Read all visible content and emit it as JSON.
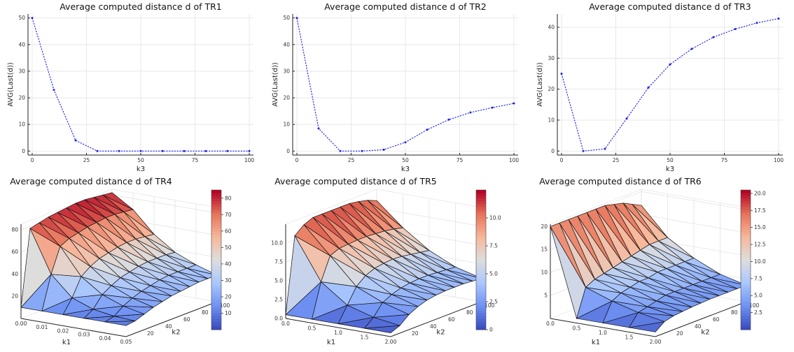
{
  "colors": {
    "series": "#1f1fe6",
    "grid": "#e3e3e3",
    "colormap": [
      "#3b4cc0",
      "#6f92f3",
      "#aac7fd",
      "#dddddd",
      "#f7b89c",
      "#e7745b",
      "#b40426"
    ]
  },
  "chart_data": [
    {
      "type": "line",
      "title": "Average computed distance d of TR1",
      "xlabel": "k3",
      "ylabel": "AVG(Last(d))",
      "xlim": [
        0,
        100
      ],
      "ylim": [
        0,
        50
      ],
      "xticks": [
        "0",
        "25",
        "50",
        "75",
        "100"
      ],
      "yticks": [
        "0",
        "10",
        "20",
        "30",
        "40",
        "50"
      ],
      "grid": true,
      "x": [
        0,
        10,
        20,
        30,
        40,
        50,
        60,
        70,
        80,
        90,
        100
      ],
      "y": [
        50,
        23,
        4,
        0,
        0,
        0,
        0,
        0,
        0,
        0,
        0
      ]
    },
    {
      "type": "line",
      "title": "Average computed distance d of TR2",
      "xlabel": "k3",
      "ylabel": "AVG(Last(d))",
      "xlim": [
        0,
        100
      ],
      "ylim": [
        0,
        50
      ],
      "xticks": [
        "0",
        "25",
        "50",
        "75",
        "100"
      ],
      "yticks": [
        "0",
        "10",
        "20",
        "30",
        "40",
        "50"
      ],
      "grid": true,
      "x": [
        0,
        10,
        20,
        30,
        40,
        50,
        60,
        70,
        80,
        90,
        100
      ],
      "y": [
        50,
        8.5,
        0,
        0,
        0.5,
        3.3,
        8,
        11.8,
        14.5,
        16.3,
        17.9
      ]
    },
    {
      "type": "line",
      "title": "Average computed distance d of TR3",
      "xlabel": "k3",
      "ylabel": "AVG(Last(d))",
      "xlim": [
        0,
        100
      ],
      "ylim": [
        0,
        43
      ],
      "xticks": [
        "0",
        "25",
        "50",
        "75",
        "100"
      ],
      "yticks": [
        "0",
        "10",
        "20",
        "30",
        "40"
      ],
      "grid": true,
      "x": [
        0,
        10,
        20,
        30,
        40,
        50,
        60,
        70,
        80,
        90,
        100
      ],
      "y": [
        25,
        0,
        0.7,
        10.5,
        20.5,
        28,
        33,
        36.8,
        39.4,
        41.4,
        42.8
      ]
    },
    {
      "type": "surface",
      "title": "Average computed distance d of TR4",
      "xlabel": "k1",
      "ylabel": "k2",
      "xticks": [
        "0.00",
        "0.01",
        "0.02",
        "0.03",
        "0.04",
        "0.05"
      ],
      "yticks": [
        "20",
        "40",
        "60",
        "80",
        "100"
      ],
      "zticks": [
        "20",
        "40",
        "60",
        "80"
      ],
      "colorbar_ticks": [
        "10",
        "20",
        "30",
        "40",
        "50",
        "60",
        "70",
        "80"
      ],
      "zlim": [
        0,
        85
      ],
      "k1_values": [
        0,
        0.01,
        0.02,
        0.03,
        0.04,
        0.05
      ],
      "k2_values": [
        0,
        10,
        20,
        30,
        40,
        50,
        60,
        70,
        80,
        90,
        100
      ],
      "z": [
        [
          10,
          78,
          80,
          82,
          83,
          84,
          85,
          85,
          84,
          83,
          82
        ],
        [
          10,
          40,
          62,
          66,
          68,
          70,
          71,
          72,
          72,
          71,
          70
        ],
        [
          10,
          22,
          38,
          44,
          48,
          50,
          52,
          53,
          53,
          52,
          51
        ],
        [
          10,
          15,
          25,
          30,
          34,
          36,
          38,
          39,
          39,
          39,
          38
        ],
        [
          10,
          12,
          18,
          22,
          25,
          27,
          29,
          30,
          30,
          30,
          30
        ],
        [
          10,
          11,
          14,
          17,
          19,
          21,
          22,
          23,
          24,
          24,
          24
        ]
      ]
    },
    {
      "type": "surface",
      "title": "Average computed distance d of TR5",
      "xlabel": "k1",
      "ylabel": "k2",
      "xticks": [
        "0.0",
        "0.5",
        "1.0",
        "1.5",
        "2.00"
      ],
      "yticks": [
        "20",
        "40",
        "60",
        "80",
        "100"
      ],
      "zticks": [
        "0.0",
        "2.5",
        "5.0",
        "7.5",
        "10.0"
      ],
      "colorbar_ticks": [
        "0",
        "2.5",
        "5.0",
        "7.5",
        "10.0"
      ],
      "zlim": [
        0,
        12.5
      ],
      "k1_values": [
        0,
        0.5,
        1.0,
        1.5,
        2.0
      ],
      "k2_values": [
        0,
        10,
        20,
        30,
        40,
        50,
        60,
        70,
        80,
        90,
        100
      ],
      "z": [
        [
          0.5,
          10.5,
          11.5,
          12,
          12,
          12,
          12,
          12,
          11.8,
          11.5,
          11
        ],
        [
          0.5,
          5,
          8,
          8.5,
          8.6,
          8.7,
          8.7,
          8.6,
          8.5,
          8.3,
          8
        ],
        [
          0.5,
          2.5,
          4.5,
          5.5,
          6,
          6.2,
          6.3,
          6.2,
          6,
          5.8,
          5.6
        ],
        [
          0.5,
          1.5,
          3,
          3.6,
          4,
          4.2,
          4.3,
          4.3,
          4.2,
          4.1,
          4
        ],
        [
          0.5,
          1,
          2,
          2.6,
          3,
          3.2,
          3.3,
          3.3,
          3.3,
          3.2,
          3.1
        ]
      ]
    },
    {
      "type": "surface",
      "title": "Average computed distance d of TR6",
      "xlabel": "k1",
      "ylabel": "k2",
      "xticks": [
        "0.0",
        "0.5",
        "1.0",
        "1.5",
        "2.00"
      ],
      "yticks": [
        "20",
        "40",
        "60",
        "80",
        "100"
      ],
      "zticks": [
        "5",
        "10",
        "15",
        "20"
      ],
      "colorbar_ticks": [
        "2.5",
        "5.0",
        "7.5",
        "10.0",
        "12.5",
        "15.0",
        "17.5",
        "20.0"
      ],
      "zlim": [
        0,
        20.5
      ],
      "k1_values": [
        0,
        0.5,
        1.0,
        1.5,
        2.0
      ],
      "k2_values": [
        0,
        10,
        20,
        30,
        40,
        50,
        60,
        70,
        80,
        90,
        100
      ],
      "z": [
        [
          20,
          20,
          20,
          20,
          20,
          20,
          20,
          19.5,
          19,
          18,
          17
        ],
        [
          1,
          7,
          8,
          8.5,
          9,
          9.5,
          10,
          10.5,
          11,
          11,
          11
        ],
        [
          1,
          5,
          6,
          6.5,
          7,
          7,
          7.5,
          7.5,
          7.5,
          7.5,
          7.5
        ],
        [
          1,
          3.5,
          4,
          4.5,
          5,
          5,
          5,
          5,
          5,
          5,
          5
        ],
        [
          1,
          2.5,
          3,
          3.2,
          3.4,
          3.5,
          3.6,
          3.6,
          3.6,
          3.6,
          3.6
        ]
      ]
    }
  ]
}
